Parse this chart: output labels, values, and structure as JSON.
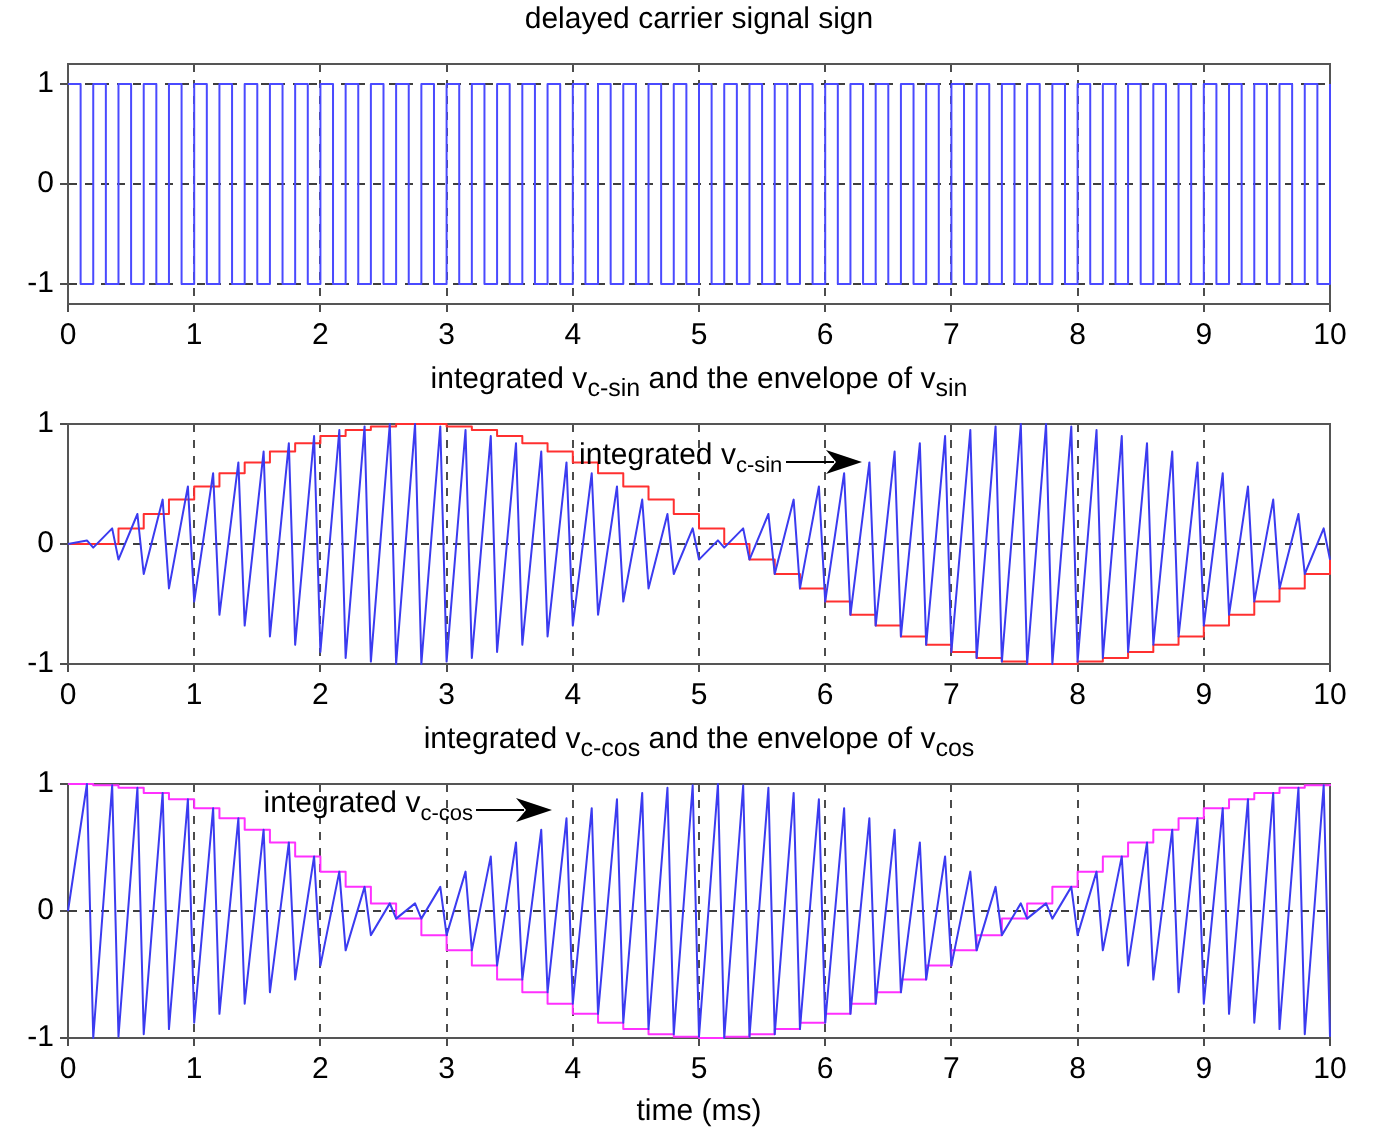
{
  "chart_data": [
    {
      "type": "line",
      "title": "delayed carrier signal sign",
      "xlim": [
        0,
        10
      ],
      "xticks": [
        0,
        1,
        2,
        3,
        4,
        5,
        6,
        7,
        8,
        9,
        10
      ],
      "ylim": [
        -1.2,
        1.2
      ],
      "yticks": [
        -1,
        0,
        1
      ],
      "grid": true,
      "series": [
        {
          "type": "step",
          "color": "#4a4aff",
          "x": [
            0,
            0.1,
            0.2,
            0.3,
            0.4,
            0.5,
            0.6,
            0.7,
            0.8,
            0.9,
            1,
            1.1,
            1.2,
            1.3,
            1.4,
            1.5,
            1.6,
            1.7,
            1.8,
            1.9,
            2,
            2.1,
            2.2,
            2.3,
            2.4,
            2.5,
            2.6,
            2.7,
            2.8,
            2.9,
            3,
            3.1,
            3.2,
            3.3,
            3.4,
            3.5,
            3.6,
            3.7,
            3.8,
            3.9,
            4,
            4.1,
            4.2,
            4.3,
            4.4,
            4.5,
            4.6,
            4.7,
            4.8,
            4.9,
            5,
            5.1,
            5.2,
            5.3,
            5.4,
            5.5,
            5.6,
            5.7,
            5.8,
            5.9,
            6,
            6.1,
            6.2,
            6.3,
            6.4,
            6.5,
            6.6,
            6.7,
            6.8,
            6.9,
            7,
            7.1,
            7.2,
            7.3,
            7.4,
            7.5,
            7.6,
            7.7,
            7.8,
            7.9,
            8,
            8.1,
            8.2,
            8.3,
            8.4,
            8.5,
            8.6,
            8.7,
            8.8,
            8.9,
            9,
            9.1,
            9.2,
            9.3,
            9.4,
            9.5,
            9.6,
            9.7,
            9.8,
            9.9,
            10
          ],
          "values": [
            1,
            -1,
            1,
            -1,
            1,
            -1,
            1,
            -1,
            1,
            -1,
            1,
            -1,
            1,
            -1,
            1,
            -1,
            1,
            -1,
            1,
            -1,
            1,
            -1,
            1,
            -1,
            1,
            -1,
            1,
            -1,
            1,
            -1,
            1,
            -1,
            1,
            -1,
            1,
            -1,
            1,
            -1,
            1,
            -1,
            1,
            -1,
            1,
            -1,
            1,
            -1,
            1,
            -1,
            1,
            -1,
            1,
            -1,
            1,
            -1,
            1,
            -1,
            1,
            -1,
            1,
            -1,
            1,
            -1,
            1,
            -1,
            1,
            -1,
            1,
            -1,
            1,
            -1,
            1,
            -1,
            1,
            -1,
            1,
            -1,
            1,
            -1,
            1,
            -1,
            1,
            -1,
            1,
            -1,
            1,
            -1,
            1,
            -1,
            1,
            -1,
            1,
            -1,
            1,
            -1,
            1,
            -1,
            1,
            -1,
            1,
            -1,
            1
          ]
        }
      ]
    },
    {
      "type": "line",
      "title": "integrated v$_{c-sin}$ and the envelope of v$_{sin}$",
      "xlim": [
        0,
        10
      ],
      "xticks": [
        0,
        1,
        2,
        3,
        4,
        5,
        6,
        7,
        8,
        9,
        10
      ],
      "ylim": [
        -1,
        1
      ],
      "yticks": [
        -1,
        0,
        1
      ],
      "grid": true,
      "annotations": [
        "integrated v$_{c-sin}$"
      ],
      "series": [
        {
          "type": "line",
          "color": "#3b3bf0",
          "x": [
            0,
            0.15,
            0.2,
            0.35,
            0.4,
            0.55,
            0.6,
            0.75,
            0.8,
            0.95,
            1,
            1.15,
            1.2,
            1.35,
            1.4,
            1.55,
            1.6,
            1.75,
            1.8,
            1.95,
            2,
            2.15,
            2.2,
            2.35,
            2.4,
            2.55,
            2.6,
            2.75,
            2.8,
            2.95,
            3,
            3.15,
            3.2,
            3.35,
            3.4,
            3.55,
            3.6,
            3.75,
            3.8,
            3.95,
            4,
            4.15,
            4.2,
            4.35,
            4.4,
            4.55,
            4.6,
            4.75,
            4.8,
            4.95,
            5,
            5.15,
            5.2,
            5.35,
            5.4,
            5.55,
            5.6,
            5.75,
            5.8,
            5.95,
            6,
            6.15,
            6.2,
            6.35,
            6.4,
            6.55,
            6.6,
            6.75,
            6.8,
            6.95,
            7,
            7.15,
            7.2,
            7.35,
            7.4,
            7.55,
            7.6,
            7.75,
            7.8,
            7.95,
            8,
            8.15,
            8.2,
            8.35,
            8.4,
            8.55,
            8.6,
            8.75,
            8.8,
            8.95,
            9,
            9.15,
            9.2,
            9.35,
            9.4,
            9.55,
            9.6,
            9.75,
            9.8,
            9.95,
            10
          ],
          "values": [
            0,
            0.03,
            -0.03,
            0.13,
            -0.13,
            0.25,
            -0.25,
            0.37,
            -0.37,
            0.48,
            -0.48,
            0.59,
            -0.59,
            0.68,
            -0.68,
            0.77,
            -0.77,
            0.84,
            -0.84,
            0.9,
            -0.9,
            0.95,
            -0.95,
            0.98,
            -0.98,
            1,
            -1,
            1,
            -1,
            0.98,
            -0.98,
            0.95,
            -0.95,
            0.9,
            -0.9,
            0.84,
            -0.84,
            0.77,
            -0.77,
            0.68,
            -0.68,
            0.59,
            -0.59,
            0.48,
            -0.48,
            0.37,
            -0.37,
            0.25,
            -0.25,
            0.13,
            -0.13,
            0.03,
            -0.03,
            0.13,
            -0.13,
            0.25,
            -0.25,
            0.37,
            -0.37,
            0.48,
            -0.48,
            0.59,
            -0.59,
            0.68,
            -0.68,
            0.77,
            -0.77,
            0.84,
            -0.84,
            0.9,
            -0.9,
            0.95,
            -0.95,
            0.98,
            -0.98,
            1,
            -1,
            1,
            -1,
            0.98,
            -0.98,
            0.95,
            -0.95,
            0.9,
            -0.9,
            0.84,
            -0.84,
            0.77,
            -0.77,
            0.68,
            -0.68,
            0.59,
            -0.59,
            0.48,
            -0.48,
            0.37,
            -0.37,
            0.25,
            -0.25,
            0.13,
            -0.13
          ]
        },
        {
          "type": "step",
          "color": "#ff3030",
          "x": [
            0,
            0.2,
            0.4,
            0.6,
            0.8,
            1,
            1.2,
            1.4,
            1.6,
            1.8,
            2,
            2.2,
            2.4,
            2.6,
            2.8,
            3,
            3.2,
            3.4,
            3.6,
            3.8,
            4,
            4.2,
            4.4,
            4.6,
            4.8,
            5,
            5.2,
            5.4,
            5.6,
            5.8,
            6,
            6.2,
            6.4,
            6.6,
            6.8,
            7,
            7.2,
            7.4,
            7.6,
            7.8,
            8,
            8.2,
            8.4,
            8.6,
            8.8,
            9,
            9.2,
            9.4,
            9.6,
            9.8,
            10
          ],
          "values": [
            0,
            0,
            0.13,
            0.25,
            0.37,
            0.48,
            0.59,
            0.68,
            0.77,
            0.84,
            0.9,
            0.95,
            0.98,
            1,
            1,
            0.98,
            0.95,
            0.9,
            0.84,
            0.77,
            0.68,
            0.59,
            0.48,
            0.37,
            0.25,
            0.13,
            0,
            -0.13,
            -0.25,
            -0.37,
            -0.48,
            -0.59,
            -0.68,
            -0.77,
            -0.84,
            -0.9,
            -0.95,
            -0.98,
            -1,
            -1,
            -0.98,
            -0.95,
            -0.9,
            -0.84,
            -0.77,
            -0.68,
            -0.59,
            -0.48,
            -0.37,
            -0.25,
            -0.13
          ]
        }
      ]
    },
    {
      "type": "line",
      "title": "integrated v$_{c-cos}$ and the envelope of v$_{cos}$",
      "xlabel": "time (ms)",
      "xlim": [
        0,
        10
      ],
      "xticks": [
        0,
        1,
        2,
        3,
        4,
        5,
        6,
        7,
        8,
        9,
        10
      ],
      "ylim": [
        -1,
        1
      ],
      "yticks": [
        -1,
        0,
        1
      ],
      "grid": true,
      "annotations": [
        "integrated v$_{c-cos}$"
      ],
      "series": [
        {
          "type": "line",
          "color": "#3b3bf0",
          "x": [
            0,
            0.15,
            0.2,
            0.35,
            0.4,
            0.55,
            0.6,
            0.75,
            0.8,
            0.95,
            1,
            1.15,
            1.2,
            1.35,
            1.4,
            1.55,
            1.6,
            1.75,
            1.8,
            1.95,
            2,
            2.15,
            2.2,
            2.35,
            2.4,
            2.55,
            2.6,
            2.75,
            2.8,
            2.95,
            3,
            3.15,
            3.2,
            3.35,
            3.4,
            3.55,
            3.6,
            3.75,
            3.8,
            3.95,
            4,
            4.15,
            4.2,
            4.35,
            4.4,
            4.55,
            4.6,
            4.75,
            4.8,
            4.95,
            5,
            5.15,
            5.2,
            5.35,
            5.4,
            5.55,
            5.6,
            5.75,
            5.8,
            5.95,
            6,
            6.15,
            6.2,
            6.35,
            6.4,
            6.55,
            6.6,
            6.75,
            6.8,
            6.95,
            7,
            7.15,
            7.2,
            7.35,
            7.4,
            7.55,
            7.6,
            7.75,
            7.8,
            7.95,
            8,
            8.15,
            8.2,
            8.35,
            8.4,
            8.55,
            8.6,
            8.75,
            8.8,
            8.95,
            9,
            9.15,
            9.2,
            9.35,
            9.4,
            9.55,
            9.6,
            9.75,
            9.8,
            9.95,
            10
          ],
          "values": [
            0,
            1,
            -1,
            0.99,
            -0.99,
            0.97,
            -0.97,
            0.93,
            -0.93,
            0.88,
            -0.88,
            0.81,
            -0.81,
            0.73,
            -0.73,
            0.64,
            -0.64,
            0.54,
            -0.54,
            0.43,
            -0.43,
            0.31,
            -0.31,
            0.19,
            -0.19,
            0.06,
            -0.06,
            0.06,
            -0.06,
            0.19,
            -0.19,
            0.31,
            -0.31,
            0.43,
            -0.43,
            0.54,
            -0.54,
            0.64,
            -0.64,
            0.73,
            -0.73,
            0.81,
            -0.81,
            0.88,
            -0.88,
            0.93,
            -0.93,
            0.97,
            -0.97,
            0.99,
            -0.99,
            1,
            -1,
            0.99,
            -0.99,
            0.97,
            -0.97,
            0.93,
            -0.93,
            0.88,
            -0.88,
            0.81,
            -0.81,
            0.73,
            -0.73,
            0.64,
            -0.64,
            0.54,
            -0.54,
            0.43,
            -0.43,
            0.31,
            -0.31,
            0.19,
            -0.19,
            0.06,
            -0.06,
            0.06,
            -0.06,
            0.19,
            -0.19,
            0.31,
            -0.31,
            0.43,
            -0.43,
            0.54,
            -0.54,
            0.64,
            -0.64,
            0.73,
            -0.73,
            0.81,
            -0.81,
            0.88,
            -0.88,
            0.93,
            -0.93,
            0.97,
            -0.97,
            0.99,
            -0.99
          ]
        },
        {
          "type": "step",
          "color": "#ff30ff",
          "x": [
            0,
            0.2,
            0.4,
            0.6,
            0.8,
            1,
            1.2,
            1.4,
            1.6,
            1.8,
            2,
            2.2,
            2.4,
            2.6,
            2.8,
            3,
            3.2,
            3.4,
            3.6,
            3.8,
            4,
            4.2,
            4.4,
            4.6,
            4.8,
            5,
            5.2,
            5.4,
            5.6,
            5.8,
            6,
            6.2,
            6.4,
            6.6,
            6.8,
            7,
            7.2,
            7.4,
            7.6,
            7.8,
            8,
            8.2,
            8.4,
            8.6,
            8.8,
            9,
            9.2,
            9.4,
            9.6,
            9.8,
            10
          ],
          "values": [
            1,
            0.99,
            0.97,
            0.93,
            0.88,
            0.81,
            0.73,
            0.64,
            0.54,
            0.43,
            0.31,
            0.19,
            0.06,
            -0.06,
            -0.19,
            -0.31,
            -0.43,
            -0.54,
            -0.64,
            -0.73,
            -0.81,
            -0.88,
            -0.93,
            -0.97,
            -0.99,
            -1,
            -0.99,
            -0.97,
            -0.93,
            -0.88,
            -0.81,
            -0.73,
            -0.64,
            -0.54,
            -0.43,
            -0.31,
            -0.19,
            -0.06,
            0.06,
            0.19,
            0.31,
            0.43,
            0.54,
            0.64,
            0.73,
            0.81,
            0.88,
            0.93,
            0.97,
            0.99,
            1
          ]
        }
      ]
    }
  ]
}
